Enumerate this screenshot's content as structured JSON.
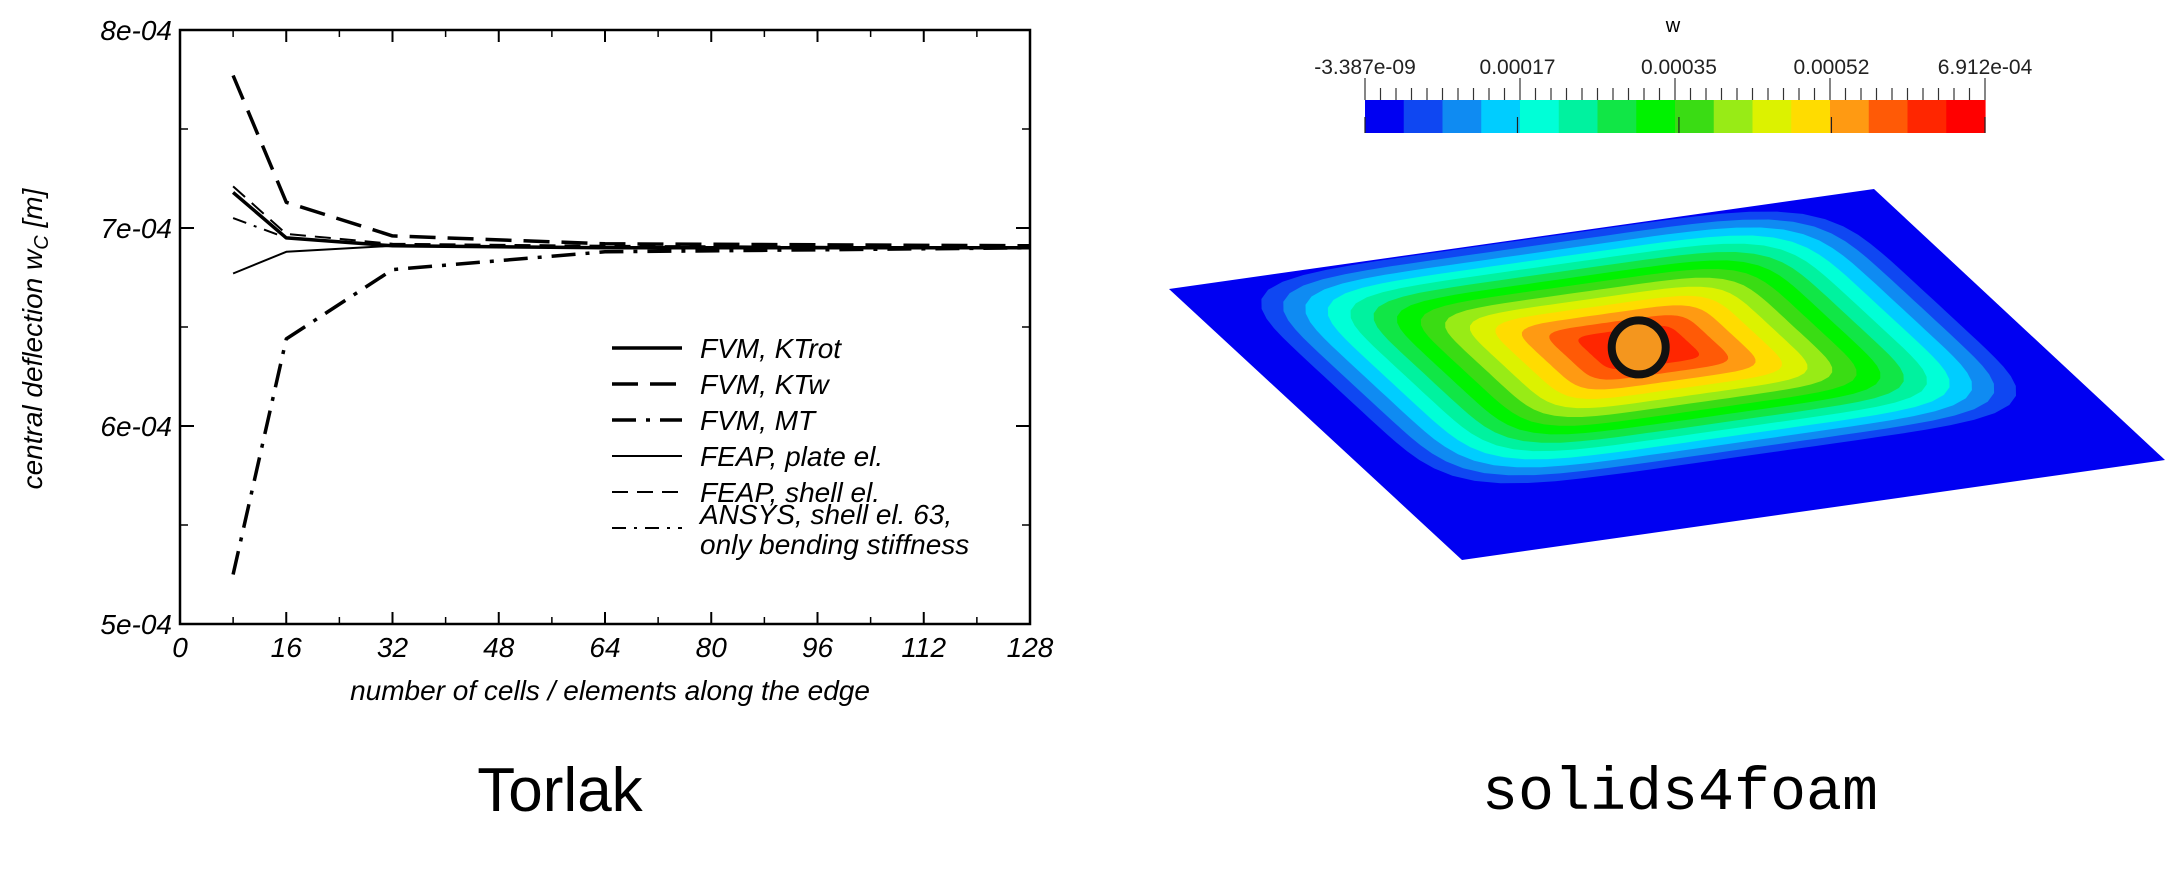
{
  "chart_data": [
    {
      "type": "line",
      "title": "",
      "xlabel": "number of cells / elements along the edge",
      "ylabel_parts": {
        "prefix": "central deflection",
        "symbol": "w",
        "subscript": "C",
        "unit": "[m]"
      },
      "xlim": [
        0,
        128
      ],
      "ylim": [
        0.0005,
        0.0008
      ],
      "x_ticks": [
        "0",
        "16",
        "32",
        "48",
        "64",
        "80",
        "96",
        "112",
        "128"
      ],
      "y_ticks": [
        "5e-04",
        "6e-04",
        "7e-04",
        "8e-04"
      ],
      "grid": false,
      "legend_position": "center-right",
      "series": [
        {
          "name": "FVM, KTrot",
          "style": "solid-thick",
          "x": [
            8,
            16,
            32,
            64,
            128
          ],
          "y": [
            0.000718,
            0.000695,
            0.000691,
            0.00069,
            0.00069
          ]
        },
        {
          "name": "FVM, KTw",
          "style": "dashed-thick",
          "x": [
            8,
            16,
            32,
            64,
            128
          ],
          "y": [
            0.000777,
            0.000713,
            0.000696,
            0.000692,
            0.000691
          ]
        },
        {
          "name": "FVM, MT",
          "style": "dashdot-thick",
          "x": [
            8,
            16,
            32,
            64,
            128
          ],
          "y": [
            0.000525,
            0.000644,
            0.000679,
            0.000688,
            0.00069
          ]
        },
        {
          "name": "FEAP, plate el.",
          "style": "solid-thin",
          "x": [
            8,
            16,
            32,
            64,
            128
          ],
          "y": [
            0.000677,
            0.000688,
            0.000691,
            0.00069,
            0.00069
          ]
        },
        {
          "name": "FEAP, shell el.",
          "style": "dashed-thin",
          "x": [
            8,
            16,
            32,
            64,
            128
          ],
          "y": [
            0.000721,
            0.000697,
            0.000692,
            0.000691,
            0.00069
          ]
        },
        {
          "name": "ANSYS, shell el. 63, only bending stiffness",
          "style": "dashdot-thin",
          "x": [
            8,
            16,
            32,
            64,
            128
          ],
          "y": [
            0.000705,
            0.000695,
            0.000691,
            0.00069,
            0.00069
          ]
        }
      ]
    },
    {
      "type": "heatmap",
      "colorbar_title": "w",
      "colorbar_tick_labels": [
        "-3.387e-09",
        "0.00017",
        "0.00035",
        "0.00052",
        "6.912e-04"
      ],
      "range": [
        -3.387e-09,
        0.0006912
      ],
      "color_bands": [
        "#0000f2",
        "#0f47f2",
        "#0f8bf2",
        "#00cdff",
        "#00ffd7",
        "#00f29f",
        "#11e646",
        "#00f200",
        "#3adc14",
        "#98eb16",
        "#dcf200",
        "#ffdc00",
        "#ff9a12",
        "#ff5a06",
        "#ff2600",
        "#ff0000"
      ],
      "marker_color": "#f4961e"
    }
  ],
  "captions": {
    "left": "Torlak",
    "right": "solids4foam"
  }
}
